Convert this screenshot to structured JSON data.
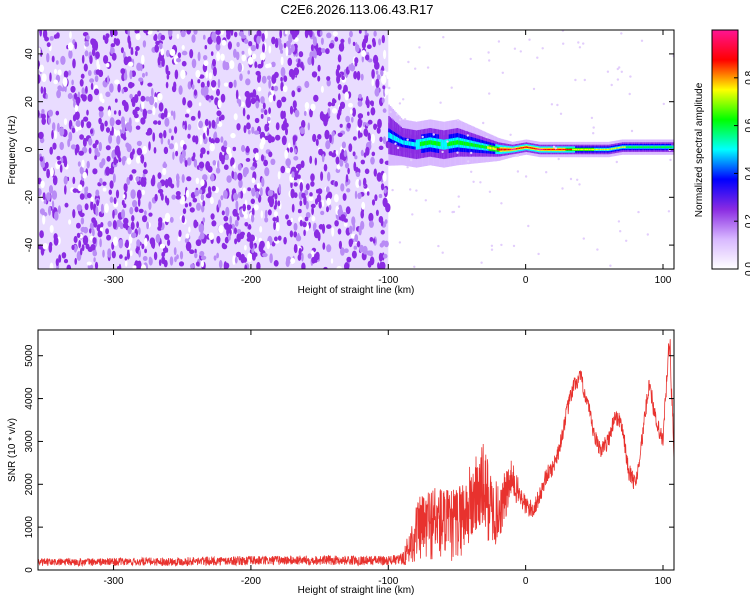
{
  "title": "C2E6.2026.113.06.43.R17",
  "chart_data": [
    {
      "type": "heatmap",
      "xlabel": "Height of straight line (km)",
      "ylabel": "Frequency (Hz)",
      "xlim": [
        -355,
        108
      ],
      "ylim": [
        -50,
        50
      ],
      "x_ticks": [
        -300,
        -200,
        -100,
        0,
        100
      ],
      "x_tick_labels": [
        "-300",
        "-200",
        "-100",
        "0",
        "100"
      ],
      "y_ticks": [
        -40,
        -20,
        0,
        20,
        40
      ],
      "y_tick_labels": [
        "-40",
        "-20",
        "0",
        "20",
        "40"
      ],
      "noise_region_km": [
        -355,
        -100
      ],
      "signal_track": {
        "x": [
          -100,
          -90,
          -80,
          -70,
          -60,
          -50,
          -40,
          -30,
          -20,
          -10,
          0,
          10,
          20,
          30,
          40,
          50,
          60,
          70,
          80,
          90,
          100,
          108
        ],
        "freq_hz": [
          6,
          3,
          2,
          3,
          2,
          3,
          2,
          1,
          0,
          0,
          1,
          0,
          0,
          0,
          0,
          0,
          0,
          1,
          1,
          1,
          1,
          1
        ],
        "half_width_hz": [
          8,
          6,
          6,
          6,
          6,
          6,
          5,
          4,
          3,
          2,
          2,
          2,
          2,
          2,
          2,
          2,
          2,
          2,
          2,
          2,
          2,
          2
        ],
        "amplitude": [
          0.45,
          0.5,
          0.55,
          0.6,
          0.55,
          0.6,
          0.6,
          0.65,
          0.85,
          0.95,
          0.9,
          0.95,
          0.9,
          0.85,
          0.75,
          0.7,
          0.7,
          0.7,
          0.65,
          0.6,
          0.6,
          0.55
        ]
      },
      "colorbar": {
        "label": "Normalized spectral amplitude",
        "range": [
          0,
          1
        ],
        "ticks": [
          0.0,
          0.2,
          0.4,
          0.6,
          0.8
        ],
        "tick_labels": [
          "0.0",
          "0.2",
          "0.4",
          "0.6",
          "0.8"
        ],
        "colors": [
          "#ffffff",
          "#d8b8ff",
          "#8a2be2",
          "#0000ff",
          "#00ffff",
          "#00ff00",
          "#ffff00",
          "#ff0000",
          "#ff1493"
        ]
      }
    },
    {
      "type": "line",
      "xlabel": "Height of straight line (km)",
      "ylabel": "SNR (10 * v/v)",
      "xlim": [
        -355,
        108
      ],
      "ylim": [
        0,
        5600
      ],
      "x_ticks": [
        -300,
        -200,
        -100,
        0,
        100
      ],
      "x_tick_labels": [
        "-300",
        "-200",
        "-100",
        "0",
        "100"
      ],
      "y_ticks": [
        0,
        1000,
        2000,
        3000,
        4000,
        5000
      ],
      "y_tick_labels": [
        "0",
        "1000",
        "2000",
        "3000",
        "4000",
        "5000"
      ],
      "color": "#e8322e",
      "series": [
        {
          "name": "SNR",
          "x": [
            -355,
            -300,
            -250,
            -200,
            -150,
            -100,
            -90,
            -85,
            -80,
            -75,
            -70,
            -65,
            -60,
            -55,
            -50,
            -45,
            -40,
            -35,
            -30,
            -25,
            -20,
            -15,
            -10,
            -5,
            0,
            5,
            10,
            15,
            20,
            25,
            30,
            35,
            40,
            45,
            50,
            55,
            60,
            65,
            70,
            75,
            80,
            85,
            90,
            95,
            100,
            103,
            105,
            108
          ],
          "y": [
            180,
            190,
            200,
            220,
            230,
            220,
            250,
            500,
            900,
            1000,
            1100,
            1150,
            1100,
            1000,
            1100,
            1300,
            1500,
            1800,
            1900,
            1400,
            1300,
            1700,
            2100,
            1800,
            1500,
            1400,
            1700,
            2200,
            2400,
            2900,
            3700,
            4300,
            4500,
            3900,
            3100,
            2800,
            3000,
            3600,
            3400,
            2300,
            2000,
            3100,
            4400,
            3400,
            3000,
            4600,
            5400,
            2500
          ],
          "noise_amplitude": [
            90,
            90,
            100,
            110,
            110,
            110,
            130,
            400,
            700,
            800,
            900,
            900,
            900,
            850,
            900,
            900,
            1000,
            1000,
            1100,
            900,
            700,
            600,
            500,
            300,
            250,
            220,
            200,
            200,
            200,
            200,
            200,
            200,
            200,
            200,
            200,
            200,
            200,
            200,
            200,
            200,
            200,
            200,
            220,
            220,
            220,
            300,
            400,
            400
          ]
        }
      ]
    }
  ]
}
